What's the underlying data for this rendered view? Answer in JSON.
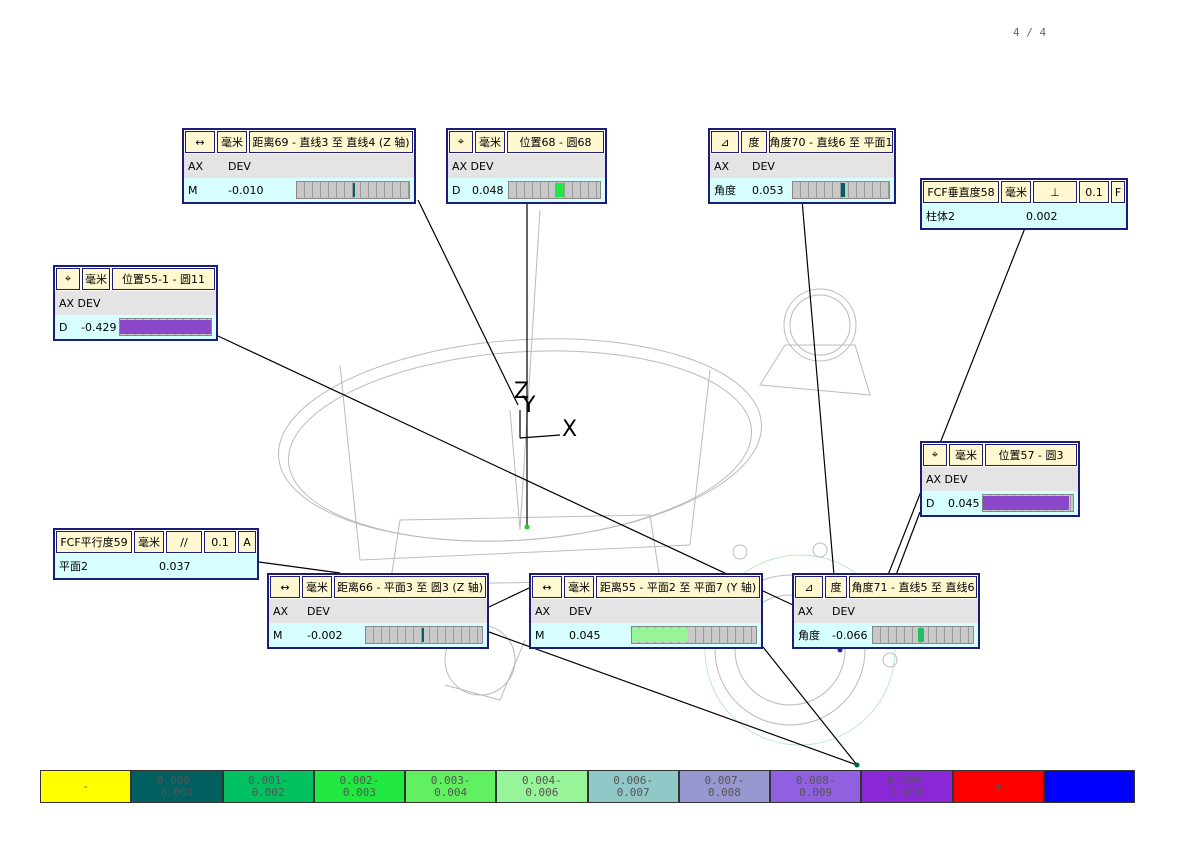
{
  "page_number": "4 / 4",
  "axis_labels": [
    "Z",
    "Y",
    "X"
  ],
  "callouts": [
    {
      "header": [
        "↔",
        "毫米",
        "距离69 - 直线3 至 直线4 (Z 轴)"
      ],
      "rows": [
        [
          "AX",
          "DEV"
        ],
        [
          "M",
          "-0.010"
        ]
      ]
    },
    {
      "header": [
        "⌖",
        "毫米",
        "位置68 - 圆68"
      ],
      "rows": [
        [
          "AX DEV"
        ],
        [
          "D",
          "0.048"
        ]
      ]
    },
    {
      "header": [
        "⊿",
        "度",
        "角度70 - 直线6 至 平面1"
      ],
      "rows": [
        [
          "AX",
          "DEV"
        ],
        [
          "角度",
          "0.053"
        ]
      ]
    },
    {
      "header": [
        "FCF垂直度58",
        "毫米",
        "⊥",
        "0.1",
        "F"
      ],
      "rows": [
        [
          "柱体2",
          "0.002"
        ]
      ]
    },
    {
      "header": [
        "⌖",
        "毫米",
        "位置55-1 - 圆11"
      ],
      "rows": [
        [
          "AX DEV"
        ],
        [
          "D",
          "-0.429"
        ]
      ]
    },
    {
      "header": [
        "⌖",
        "毫米",
        "位置57 - 圆3"
      ],
      "rows": [
        [
          "AX DEV"
        ],
        [
          "D",
          "0.045"
        ]
      ]
    },
    {
      "header": [
        "FCF平行度59",
        "毫米",
        "//",
        "0.1",
        "A"
      ],
      "rows": [
        [
          "平面2",
          "0.037"
        ]
      ]
    },
    {
      "header": [
        "↔",
        "毫米",
        "距离66 - 平面3 至 圆3 (Z 轴)"
      ],
      "rows": [
        [
          "AX",
          "DEV"
        ],
        [
          "M",
          "-0.002"
        ]
      ]
    },
    {
      "header": [
        "↔",
        "毫米",
        "距离55 - 平面2 至 平面7 (Y 轴)"
      ],
      "rows": [
        [
          "AX",
          "DEV"
        ],
        [
          "M",
          "0.045"
        ]
      ]
    },
    {
      "header": [
        "⊿",
        "度",
        "角度71 - 直线5 至 直线6"
      ],
      "rows": [
        [
          "AX",
          "DEV"
        ],
        [
          "角度",
          "-0.066"
        ]
      ]
    }
  ],
  "legend": [
    {
      "lines": [
        "-"
      ],
      "color": "#ffff00"
    },
    {
      "lines": [
        "0.000-",
        "0.001"
      ],
      "color": "#006060"
    },
    {
      "lines": [
        "0.001-",
        "0.002"
      ],
      "color": "#00c060"
    },
    {
      "lines": [
        "0.002-",
        "0.003"
      ],
      "color": "#20e840"
    },
    {
      "lines": [
        "0.003-",
        "0.004"
      ],
      "color": "#60f060"
    },
    {
      "lines": [
        "0.004-",
        "0.006"
      ],
      "color": "#98f498"
    },
    {
      "lines": [
        "0.006-",
        "0.007"
      ],
      "color": "#90c8c8"
    },
    {
      "lines": [
        "0.007-",
        "0.008"
      ],
      "color": "#9898d0"
    },
    {
      "lines": [
        "0.008-",
        "0.009"
      ],
      "color": "#9060e0"
    },
    {
      "lines": [
        "0.009-",
        "0.010"
      ],
      "color": "#8a28d8"
    },
    {
      "lines": [
        "+"
      ],
      "color": "#ff0000"
    },
    {
      "lines": [],
      "color": "#0000ff"
    }
  ]
}
